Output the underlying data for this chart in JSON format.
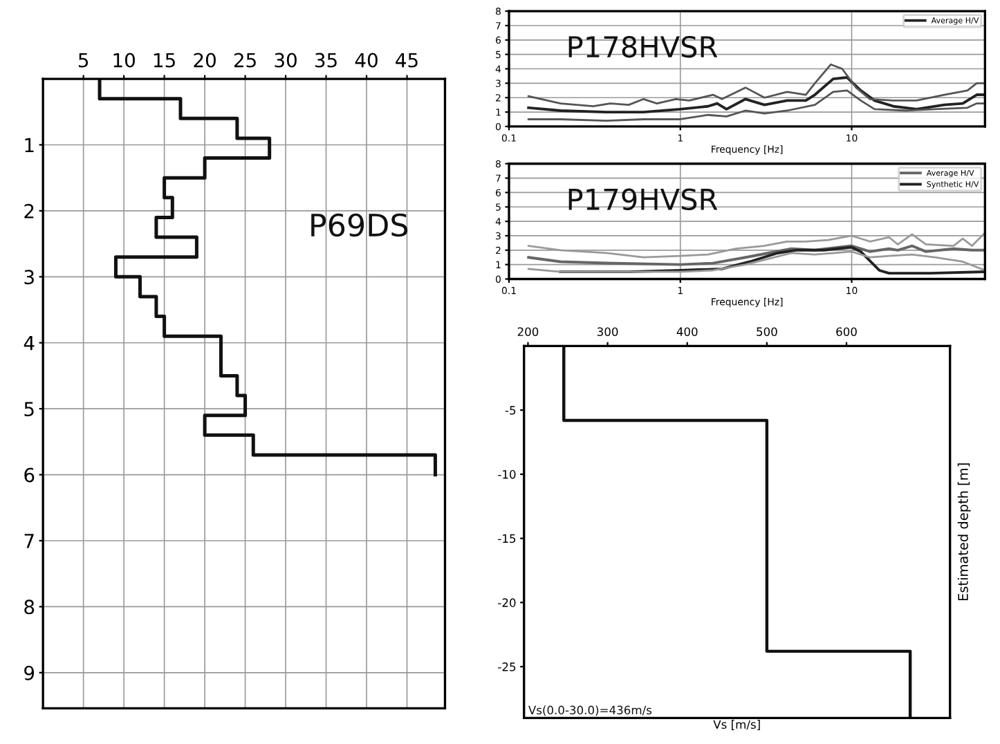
{
  "chart_data": [
    {
      "type": "line",
      "xlim": [
        0,
        49.7
      ],
      "ylim": [
        9.54,
        0
      ],
      "xticks": [
        5,
        10,
        15,
        20,
        25,
        30,
        35,
        40,
        45
      ],
      "yticks": [
        1,
        2,
        3,
        4,
        5,
        6,
        7,
        8,
        9
      ],
      "grid": true,
      "annotations": [
        "P69DS"
      ],
      "series": [
        {
          "color": "#111111",
          "x": [
            7,
            7,
            17,
            17,
            24,
            24,
            28,
            28,
            20,
            20,
            15,
            15,
            16,
            16,
            14,
            14,
            19,
            19,
            9,
            9,
            12,
            12,
            14,
            14,
            15,
            15,
            22,
            22,
            24,
            24,
            25,
            25,
            20,
            20,
            26,
            26,
            48.5,
            48.5
          ],
          "values": [
            0,
            0.3,
            0.3,
            0.6,
            0.6,
            0.9,
            0.9,
            1.2,
            1.2,
            1.5,
            1.5,
            1.8,
            1.8,
            2.1,
            2.1,
            2.4,
            2.4,
            2.7,
            2.7,
            3.0,
            3.0,
            3.3,
            3.3,
            3.6,
            3.6,
            3.9,
            3.9,
            4.5,
            4.5,
            4.8,
            4.8,
            5.1,
            5.1,
            5.4,
            5.4,
            5.7,
            5.7,
            6.0
          ]
        }
      ]
    },
    {
      "type": "line",
      "log": "x",
      "xlim": [
        0.1,
        60
      ],
      "ylim": [
        0,
        8
      ],
      "xticks": [
        0.1,
        1,
        10
      ],
      "yticks": [
        0,
        1,
        2,
        3,
        4,
        5,
        6,
        7,
        8
      ],
      "grid": true,
      "legend": "top right",
      "xlabel": "Frequency [Hz]",
      "annotations": [
        "P178HVSR"
      ],
      "series": [
        {
          "name": "Average H/V",
          "color": "#222222",
          "x": [
            0.13,
            0.2,
            0.37,
            0.61,
            1,
            1.45,
            1.64,
            1.86,
            2.4,
            3.1,
            4.2,
            5.4,
            6.1,
            7.8,
            9.4,
            11.3,
            13.6,
            17.5,
            23.9,
            34.7,
            44.5,
            53.7,
            60
          ],
          "values": [
            1.3,
            1.1,
            1.0,
            1.0,
            1.2,
            1.4,
            1.6,
            1.2,
            1.9,
            1.5,
            1.8,
            1.8,
            2.2,
            3.3,
            3.4,
            2.5,
            1.8,
            1.4,
            1.2,
            1.5,
            1.6,
            2.2,
            2.2
          ]
        },
        {
          "color": "#555555",
          "x": [
            0.13,
            0.2,
            0.31,
            0.39,
            0.5,
            0.61,
            0.73,
            0.94,
            1.13,
            1.55,
            1.75,
            2.4,
            3.1,
            4.2,
            5.4,
            6.1,
            7.55,
            8.8,
            10.6,
            12.8,
            17.5,
            23.9,
            34.7,
            47.4,
            53.7,
            60
          ],
          "values": [
            2.1,
            1.6,
            1.4,
            1.6,
            1.5,
            1.9,
            1.6,
            1.9,
            1.8,
            2.2,
            1.9,
            2.7,
            2.0,
            2.4,
            2.2,
            3.0,
            4.3,
            4.0,
            2.7,
            1.9,
            1.8,
            1.8,
            2.2,
            2.5,
            3.0,
            3.0
          ]
        },
        {
          "color": "#555555",
          "x": [
            0.13,
            0.2,
            0.37,
            0.61,
            1,
            1.45,
            1.86,
            2.4,
            3.1,
            4.2,
            6.1,
            7.8,
            9.4,
            11.3,
            13.6,
            21.1,
            30.6,
            47.4,
            53.7,
            60
          ],
          "values": [
            0.5,
            0.5,
            0.4,
            0.5,
            0.5,
            0.8,
            0.7,
            1.1,
            0.9,
            1.1,
            1.5,
            2.4,
            2.5,
            1.8,
            1.2,
            1.1,
            1.2,
            1.3,
            1.6,
            1.6
          ]
        }
      ]
    },
    {
      "type": "line",
      "log": "x",
      "xlim": [
        0.1,
        60
      ],
      "ylim": [
        0,
        8
      ],
      "xticks": [
        0.1,
        1,
        10
      ],
      "yticks": [
        0,
        1,
        2,
        3,
        4,
        5,
        6,
        7,
        8
      ],
      "grid": true,
      "legend": "top right",
      "xlabel": "Frequency [Hz]",
      "annotations": [
        "P179HVSR"
      ],
      "series": [
        {
          "name": "Average H/V",
          "color": "#666666",
          "x": [
            0.13,
            0.2,
            0.37,
            1,
            1.55,
            2.4,
            3.26,
            4.45,
            6.08,
            10,
            12.8,
            16.5,
            18.6,
            22.5,
            27.1,
            39.3,
            50.4,
            60
          ],
          "values": [
            1.5,
            1.2,
            1.1,
            1.0,
            1.1,
            1.5,
            1.8,
            2.1,
            2.0,
            2.3,
            1.9,
            2.1,
            2.0,
            2.3,
            1.9,
            2.1,
            2.0,
            2.0
          ]
        },
        {
          "name": "Synthetic H/V",
          "color": "#222222",
          "x": [
            0.2,
            0.5,
            1,
            1.75,
            2.54,
            3.7,
            4.74,
            6.88,
            10,
            11.3,
            14.5,
            16.5,
            28.8,
            60
          ],
          "values": [
            0.5,
            0.5,
            0.6,
            0.7,
            1.2,
            1.8,
            2.0,
            2.0,
            2.2,
            1.9,
            0.6,
            0.4,
            0.4,
            0.5
          ]
        },
        {
          "color": "#999999",
          "x": [
            0.13,
            0.2,
            0.37,
            0.61,
            1,
            1.45,
            2.11,
            3.07,
            4.19,
            5.37,
            7.3,
            10,
            12.8,
            16.5,
            18.6,
            22.5,
            27.1,
            39.3,
            44.5,
            50.4,
            60
          ],
          "values": [
            2.3,
            2.0,
            1.8,
            1.5,
            1.6,
            1.7,
            2.1,
            2.3,
            2.6,
            2.6,
            2.7,
            3.0,
            2.6,
            2.9,
            2.4,
            3.1,
            2.4,
            2.3,
            2.8,
            2.3,
            3.2
          ]
        },
        {
          "color": "#999999",
          "x": [
            0.13,
            0.2,
            0.37,
            1,
            1.55,
            2.4,
            3.26,
            4.45,
            6.08,
            10,
            12.8,
            16.5,
            22.5,
            30.6,
            44.5,
            60
          ],
          "values": [
            0.7,
            0.5,
            0.5,
            0.5,
            0.6,
            1.0,
            1.4,
            1.8,
            1.7,
            1.9,
            1.5,
            1.6,
            1.7,
            1.5,
            1.2,
            0.6
          ]
        }
      ]
    },
    {
      "type": "line",
      "xlim": [
        195,
        730
      ],
      "ylim": [
        -29,
        0
      ],
      "xticks": [
        200,
        300,
        400,
        500,
        600
      ],
      "yticks": [
        -25,
        -20,
        -15,
        -10,
        -5
      ],
      "xlabel": "Vs [m/s]",
      "ylabel": "Estimated depth [m]",
      "annotations": [
        "Vs(0.0-30.0)=436m/s"
      ],
      "series": [
        {
          "color": "#111111",
          "x": [
            245,
            245,
            500,
            500,
            680,
            680
          ],
          "values": [
            0,
            -5.8,
            -5.8,
            -23.8,
            -23.8,
            -29
          ]
        }
      ]
    }
  ]
}
